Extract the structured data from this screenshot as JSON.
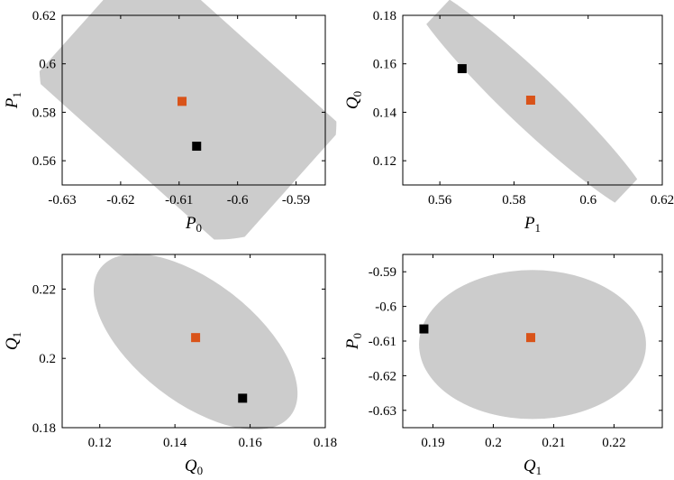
{
  "chart_data": [
    {
      "type": "scatter",
      "xlabel": "P0",
      "xlabel_base": "P",
      "xlabel_sub": "0",
      "ylabel": "P1",
      "ylabel_base": "P",
      "ylabel_sub": "1",
      "xlim": [
        -0.63,
        -0.585
      ],
      "ylim": [
        0.55,
        0.62
      ],
      "xticks": [
        -0.63,
        -0.62,
        -0.61,
        -0.6,
        -0.59
      ],
      "xtick_labels": [
        "-0.63",
        "-0.62",
        "-0.61",
        "-0.6",
        "-0.59"
      ],
      "yticks": [
        0.56,
        0.58,
        0.6,
        0.62
      ],
      "ytick_labels": [
        "0.56",
        "0.58",
        "0.6",
        "0.62"
      ],
      "region": {
        "type": "ellipse",
        "center": [
          -0.6085,
          0.5875
        ],
        "semi_major": 0.0275,
        "semi_minor": 0.0225,
        "tilt": -0.73
      },
      "series": [
        {
          "color": "#d95319",
          "values": [
            [
              -0.6095,
              0.5845
            ]
          ]
        },
        {
          "color": "#000000",
          "values": [
            [
              -0.607,
              0.566
            ]
          ]
        }
      ],
      "grid": false
    },
    {
      "type": "scatter",
      "xlabel": "P1",
      "xlabel_base": "P",
      "xlabel_sub": "1",
      "ylabel": "Q0",
      "ylabel_base": "Q",
      "ylabel_sub": "0",
      "xlim": [
        0.55,
        0.62
      ],
      "ylim": [
        0.11,
        0.18
      ],
      "xticks": [
        0.56,
        0.58,
        0.6,
        0.62
      ],
      "xtick_labels": [
        "0.56",
        "0.58",
        "0.6",
        "0.62"
      ],
      "yticks": [
        0.12,
        0.14,
        0.16,
        0.18
      ],
      "ytick_labels": [
        "0.12",
        "0.14",
        "0.16",
        "0.18"
      ],
      "region": {
        "type": "ellipse",
        "center": [
          0.5845,
          0.145
        ],
        "semi_major": 0.0455,
        "semi_minor": 0.007,
        "tilt": -0.76
      },
      "series": [
        {
          "color": "#d95319",
          "values": [
            [
              0.5845,
              0.145
            ]
          ]
        },
        {
          "color": "#000000",
          "values": [
            [
              0.566,
              0.158
            ]
          ]
        }
      ],
      "grid": false
    },
    {
      "type": "scatter",
      "xlabel": "Q0",
      "xlabel_base": "Q",
      "xlabel_sub": "0",
      "ylabel": "Q1",
      "ylabel_base": "Q",
      "ylabel_sub": "1",
      "xlim": [
        0.11,
        0.18
      ],
      "ylim": [
        0.18,
        0.23
      ],
      "xticks": [
        0.12,
        0.14,
        0.16,
        0.18
      ],
      "xtick_labels": [
        "0.12",
        "0.14",
        "0.16",
        "0.18"
      ],
      "yticks": [
        0.18,
        0.2,
        0.22
      ],
      "ytick_labels": [
        "0.18",
        "0.2",
        "0.22"
      ],
      "region": {
        "type": "ellipse",
        "center": [
          0.1455,
          0.2048
        ],
        "semi_major": 0.032,
        "semi_minor": 0.016,
        "tilt": -0.66
      },
      "series": [
        {
          "color": "#d95319",
          "values": [
            [
              0.1455,
              0.206
            ]
          ]
        },
        {
          "color": "#000000",
          "values": [
            [
              0.158,
              0.1885
            ]
          ]
        }
      ],
      "grid": false
    },
    {
      "type": "scatter",
      "xlabel": "Q1",
      "xlabel_base": "Q",
      "xlabel_sub": "1",
      "ylabel": "P0",
      "ylabel_base": "P",
      "ylabel_sub": "0",
      "xlim": [
        0.185,
        0.228
      ],
      "ylim": [
        -0.635,
        -0.585
      ],
      "xticks": [
        0.19,
        0.2,
        0.21,
        0.22
      ],
      "xtick_labels": [
        "0.19",
        "0.2",
        "0.21",
        "0.22"
      ],
      "yticks": [
        -0.63,
        -0.62,
        -0.61,
        -0.6,
        -0.59
      ],
      "ytick_labels": [
        "-0.63",
        "-0.62",
        "-0.61",
        "-0.6",
        "-0.59"
      ],
      "region": {
        "type": "ellipse",
        "center": [
          0.2065,
          -0.611
        ],
        "semi_major_x": 0.0188,
        "semi_minor_y": 0.0215,
        "tilt": 0.0
      },
      "series": [
        {
          "color": "#d95319",
          "values": [
            [
              0.2062,
              -0.609
            ]
          ]
        },
        {
          "color": "#000000",
          "values": [
            [
              0.1885,
              -0.6065
            ]
          ]
        }
      ],
      "grid": false
    }
  ],
  "style": {
    "region_color": "#cccccc",
    "axes_color": "#000000"
  }
}
